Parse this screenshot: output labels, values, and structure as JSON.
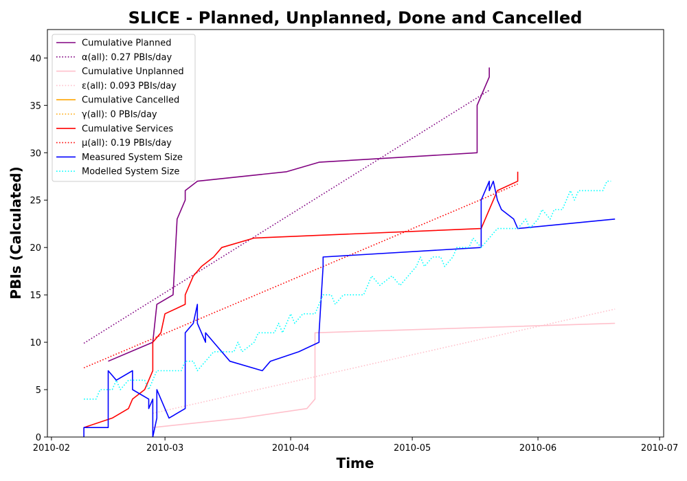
{
  "chart_data": {
    "type": "line",
    "title": "SLICE - Planned, Unplanned, Done  and Cancelled",
    "xlabel": "Time",
    "ylabel": "PBIs (Calculated)",
    "xlim": [
      "2010-01-31",
      "2010-07-02"
    ],
    "ylim": [
      0,
      43
    ],
    "x_ticks": [
      "2010-02-01",
      "2010-03-01",
      "2010-04-01",
      "2010-05-01",
      "2010-06-01",
      "2010-07-01"
    ],
    "x_tick_labels": [
      "2010-02",
      "2010-03",
      "2010-04",
      "2010-05",
      "2010-06",
      "2010-07"
    ],
    "y_ticks": [
      0,
      5,
      10,
      15,
      20,
      25,
      30,
      35,
      40
    ],
    "legend": "upper-left",
    "grid": false,
    "series": [
      {
        "name": "Cumulative Planned",
        "color": "#800080",
        "style": "solid",
        "points": [
          [
            "2010-02-15",
            8
          ],
          [
            "2010-02-26",
            10
          ],
          [
            "2010-02-27",
            14
          ],
          [
            "2010-03-03",
            15
          ],
          [
            "2010-03-04",
            23
          ],
          [
            "2010-03-06",
            25
          ],
          [
            "2010-03-06",
            26
          ],
          [
            "2010-03-09",
            27
          ],
          [
            "2010-03-31",
            28
          ],
          [
            "2010-04-08",
            29
          ],
          [
            "2010-05-17",
            30
          ],
          [
            "2010-05-17",
            35
          ],
          [
            "2010-05-18",
            36
          ],
          [
            "2010-05-19",
            37
          ],
          [
            "2010-05-20",
            38
          ],
          [
            "2010-05-20",
            39
          ]
        ]
      },
      {
        "name": "α(all): 0.27 PBIs/day",
        "color": "#800080",
        "style": "dotted",
        "points": [
          [
            "2010-02-09",
            9.9
          ],
          [
            "2010-05-20",
            36.6
          ]
        ]
      },
      {
        "name": "Cumulative Unplanned",
        "color": "#ffc0cb",
        "style": "solid",
        "points": [
          [
            "2010-02-26",
            1
          ],
          [
            "2010-03-20",
            2
          ],
          [
            "2010-04-05",
            3
          ],
          [
            "2010-04-07",
            4
          ],
          [
            "2010-04-07",
            11
          ],
          [
            "2010-06-20",
            12
          ]
        ]
      },
      {
        "name": "ε(all): 0.093 PBIs/day",
        "color": "#ffc0cb",
        "style": "dotted",
        "points": [
          [
            "2010-02-26",
            2.5
          ],
          [
            "2010-06-20",
            13.5
          ]
        ]
      },
      {
        "name": "Cumulative Cancelled",
        "color": "#ffa500",
        "style": "solid",
        "points": []
      },
      {
        "name": "γ(all): 0 PBIs/day",
        "color": "#ffa500",
        "style": "dotted",
        "points": []
      },
      {
        "name": "Cumulative Services",
        "color": "#ff0000",
        "style": "solid",
        "points": [
          [
            "2010-02-09",
            1
          ],
          [
            "2010-02-16",
            2
          ],
          [
            "2010-02-20",
            3
          ],
          [
            "2010-02-21",
            4
          ],
          [
            "2010-02-24",
            5
          ],
          [
            "2010-02-25",
            6
          ],
          [
            "2010-02-26",
            7
          ],
          [
            "2010-02-26",
            10
          ],
          [
            "2010-02-28",
            11
          ],
          [
            "2010-03-01",
            13
          ],
          [
            "2010-03-06",
            14
          ],
          [
            "2010-03-06",
            15
          ],
          [
            "2010-03-08",
            17
          ],
          [
            "2010-03-10",
            18
          ],
          [
            "2010-03-13",
            19
          ],
          [
            "2010-03-15",
            20
          ],
          [
            "2010-03-23",
            21
          ],
          [
            "2010-05-18",
            22
          ],
          [
            "2010-05-19",
            23
          ],
          [
            "2010-05-20",
            24
          ],
          [
            "2010-05-22",
            26
          ],
          [
            "2010-05-27",
            27
          ],
          [
            "2010-05-27",
            28
          ]
        ]
      },
      {
        "name": "μ(all): 0.19 PBIs/day",
        "color": "#ff0000",
        "style": "dotted",
        "points": [
          [
            "2010-02-09",
            7.3
          ],
          [
            "2010-05-27",
            26.7
          ]
        ]
      },
      {
        "name": "Measured System Size",
        "color": "#0000ff",
        "style": "solid",
        "points": [
          [
            "2010-02-09",
            0
          ],
          [
            "2010-02-09",
            1
          ],
          [
            "2010-02-15",
            1
          ],
          [
            "2010-02-15",
            7
          ],
          [
            "2010-02-17",
            6
          ],
          [
            "2010-02-21",
            7
          ],
          [
            "2010-02-21",
            5
          ],
          [
            "2010-02-25",
            4
          ],
          [
            "2010-02-25",
            3
          ],
          [
            "2010-02-26",
            4
          ],
          [
            "2010-02-26",
            0
          ],
          [
            "2010-02-27",
            2
          ],
          [
            "2010-02-27",
            5
          ],
          [
            "2010-02-28",
            4
          ],
          [
            "2010-03-02",
            2
          ],
          [
            "2010-03-06",
            3
          ],
          [
            "2010-03-06",
            11
          ],
          [
            "2010-03-08",
            12
          ],
          [
            "2010-03-09",
            14
          ],
          [
            "2010-03-09",
            12
          ],
          [
            "2010-03-11",
            10
          ],
          [
            "2010-03-11",
            11
          ],
          [
            "2010-03-13",
            10
          ],
          [
            "2010-03-17",
            8
          ],
          [
            "2010-03-25",
            7
          ],
          [
            "2010-03-27",
            8
          ],
          [
            "2010-04-03",
            9
          ],
          [
            "2010-04-08",
            10
          ],
          [
            "2010-04-08",
            11
          ],
          [
            "2010-04-09",
            18
          ],
          [
            "2010-04-09",
            19
          ],
          [
            "2010-05-18",
            20
          ],
          [
            "2010-05-18",
            25
          ],
          [
            "2010-05-19",
            26
          ],
          [
            "2010-05-20",
            27
          ],
          [
            "2010-05-20",
            26
          ],
          [
            "2010-05-21",
            27
          ],
          [
            "2010-05-22",
            25
          ],
          [
            "2010-05-23",
            24
          ],
          [
            "2010-05-26",
            23
          ],
          [
            "2010-05-27",
            22
          ],
          [
            "2010-06-20",
            23
          ]
        ]
      },
      {
        "name": "Modelled System Size",
        "color": "#00ffff",
        "style": "dotted",
        "points": [
          [
            "2010-02-09",
            4
          ],
          [
            "2010-02-12",
            4
          ],
          [
            "2010-02-13",
            5
          ],
          [
            "2010-02-16",
            5
          ],
          [
            "2010-02-17",
            6
          ],
          [
            "2010-02-18",
            5
          ],
          [
            "2010-02-20",
            6
          ],
          [
            "2010-02-24",
            6
          ],
          [
            "2010-02-25",
            5
          ],
          [
            "2010-02-26",
            6
          ],
          [
            "2010-02-27",
            7
          ],
          [
            "2010-03-05",
            7
          ],
          [
            "2010-03-06",
            8
          ],
          [
            "2010-03-08",
            8
          ],
          [
            "2010-03-09",
            7
          ],
          [
            "2010-03-11",
            8
          ],
          [
            "2010-03-13",
            9
          ],
          [
            "2010-03-18",
            9
          ],
          [
            "2010-03-19",
            10
          ],
          [
            "2010-03-20",
            9
          ],
          [
            "2010-03-23",
            10
          ],
          [
            "2010-03-24",
            11
          ],
          [
            "2010-03-28",
            11
          ],
          [
            "2010-03-29",
            12
          ],
          [
            "2010-03-30",
            11
          ],
          [
            "2010-04-01",
            13
          ],
          [
            "2010-04-02",
            12
          ],
          [
            "2010-04-04",
            13
          ],
          [
            "2010-04-07",
            13
          ],
          [
            "2010-04-08",
            14
          ],
          [
            "2010-04-09",
            15
          ],
          [
            "2010-04-11",
            15
          ],
          [
            "2010-04-12",
            14
          ],
          [
            "2010-04-14",
            15
          ],
          [
            "2010-04-19",
            15
          ],
          [
            "2010-04-20",
            16
          ],
          [
            "2010-04-21",
            17
          ],
          [
            "2010-04-23",
            16
          ],
          [
            "2010-04-26",
            17
          ],
          [
            "2010-04-28",
            16
          ],
          [
            "2010-04-30",
            17
          ],
          [
            "2010-05-02",
            18
          ],
          [
            "2010-05-03",
            19
          ],
          [
            "2010-05-04",
            18
          ],
          [
            "2010-05-06",
            19
          ],
          [
            "2010-05-08",
            19
          ],
          [
            "2010-05-09",
            18
          ],
          [
            "2010-05-11",
            19
          ],
          [
            "2010-05-12",
            20
          ],
          [
            "2010-05-15",
            20
          ],
          [
            "2010-05-16",
            21
          ],
          [
            "2010-05-18",
            20
          ],
          [
            "2010-05-20",
            21
          ],
          [
            "2010-05-22",
            22
          ],
          [
            "2010-05-25",
            22
          ],
          [
            "2010-05-27",
            22
          ],
          [
            "2010-05-29",
            23
          ],
          [
            "2010-05-30",
            22
          ],
          [
            "2010-06-01",
            23
          ],
          [
            "2010-06-02",
            24
          ],
          [
            "2010-06-04",
            23
          ],
          [
            "2010-06-05",
            24
          ],
          [
            "2010-06-07",
            24
          ],
          [
            "2010-06-08",
            25
          ],
          [
            "2010-06-09",
            26
          ],
          [
            "2010-06-10",
            25
          ],
          [
            "2010-06-11",
            26
          ],
          [
            "2010-06-14",
            26
          ],
          [
            "2010-06-17",
            26
          ],
          [
            "2010-06-18",
            27
          ],
          [
            "2010-06-19",
            27
          ]
        ]
      }
    ]
  }
}
